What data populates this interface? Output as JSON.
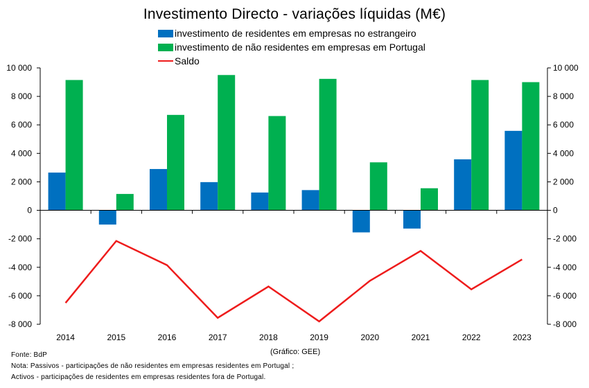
{
  "chart_data": {
    "type": "bar",
    "title": "Investimento Directo - variações líquidas (M€)",
    "categories": [
      "2014",
      "2015",
      "2016",
      "2017",
      "2018",
      "2019",
      "2020",
      "2021",
      "2022",
      "2023"
    ],
    "series": [
      {
        "name": "investimento de residentes em empresas no estrangeiro",
        "type": "bar",
        "color": "#0070c0",
        "values": [
          2650,
          -1000,
          2900,
          1980,
          1250,
          1420,
          -1550,
          -1280,
          3580,
          5580
        ]
      },
      {
        "name": "investimento de não residentes em empresas em Portugal",
        "type": "bar",
        "color": "#00b050",
        "values": [
          9150,
          1150,
          6700,
          9500,
          6620,
          9230,
          3370,
          1550,
          9150,
          9000
        ]
      },
      {
        "name": "Saldo",
        "type": "line",
        "color": "#ee1c1c",
        "values": [
          -6500,
          -2150,
          -3850,
          -7550,
          -5350,
          -7800,
          -4950,
          -2850,
          -5550,
          -3450
        ]
      }
    ],
    "ylim": [
      -8000,
      10000
    ],
    "yticks": [
      "10 000",
      "8 000",
      "6 000",
      "4 000",
      "2 000",
      "0",
      "-2 000",
      "-4 000",
      "-6 000",
      "-8 000"
    ],
    "ytick_values": [
      10000,
      8000,
      6000,
      4000,
      2000,
      0,
      -2000,
      -4000,
      -6000,
      -8000
    ],
    "legend_position": "top-center",
    "grid": false
  },
  "credit": "(Gráfico: GEE)",
  "footnotes": {
    "source": "Fonte: BdP",
    "note1": "Nota: Passivos - participações de não residentes em empresas residentes em Portugal ;",
    "note2": "Activos - participações de residentes em empresas residentes fora de Portugal."
  }
}
